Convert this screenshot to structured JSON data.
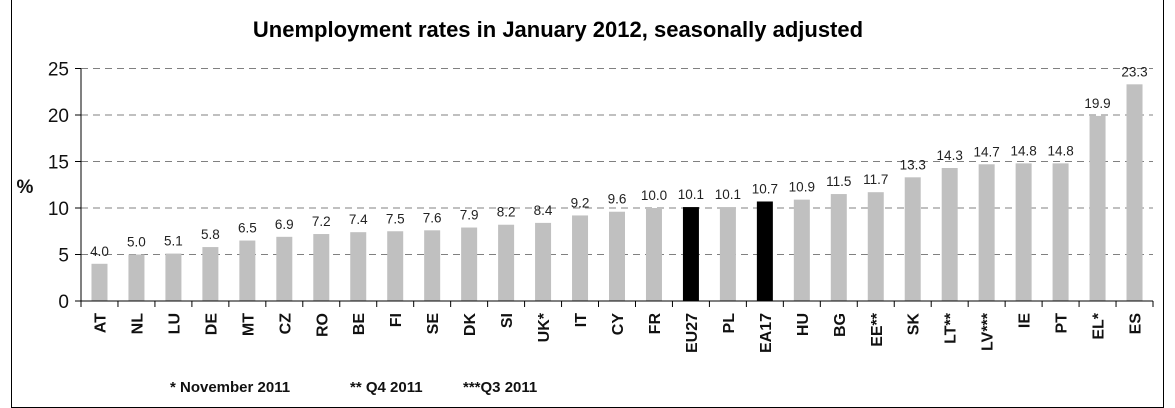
{
  "chart_data": {
    "type": "bar",
    "title": "Unemployment rates in January 2012, seasonally adjusted",
    "xlabel": "",
    "ylabel": "%",
    "ylim": [
      0,
      25
    ],
    "yticks": [
      0,
      5,
      10,
      15,
      20,
      25
    ],
    "grid": true,
    "categories": [
      "AT",
      "NL",
      "LU",
      "DE",
      "MT",
      "CZ",
      "RO",
      "BE",
      "FI",
      "SE",
      "DK",
      "SI",
      "UK*",
      "IT",
      "CY",
      "FR",
      "EU27",
      "PL",
      "EA17",
      "HU",
      "BG",
      "EE**",
      "SK",
      "LT**",
      "LV***",
      "IE",
      "PT",
      "EL*",
      "ES"
    ],
    "values": [
      4.0,
      5.0,
      5.1,
      5.8,
      6.5,
      6.9,
      7.2,
      7.4,
      7.5,
      7.6,
      7.9,
      8.2,
      8.4,
      9.2,
      9.6,
      10.0,
      10.1,
      10.1,
      10.7,
      10.9,
      11.5,
      11.7,
      13.3,
      14.3,
      14.7,
      14.8,
      14.8,
      19.9,
      23.3
    ],
    "value_labels": [
      "4.0",
      "5.0",
      "5.1",
      "5.8",
      "6.5",
      "6.9",
      "7.2",
      "7.4",
      "7.5",
      "7.6",
      "7.9",
      "8.2",
      "8.4",
      "9.2",
      "9.6",
      "10.0",
      "10.1",
      "10.1",
      "10.7",
      "10.9",
      "11.5",
      "11.7",
      "13.3",
      "14.3",
      "14.7",
      "14.8",
      "14.8",
      "19.9",
      "23.3"
    ],
    "highlighted": [
      "EU27",
      "EA17"
    ],
    "colors": {
      "bar": "#c0c0c0",
      "highlight": "#000000",
      "grid": "#808080"
    },
    "footnotes": [
      "* November 2011",
      "** Q4 2011",
      "***Q3 2011"
    ]
  }
}
